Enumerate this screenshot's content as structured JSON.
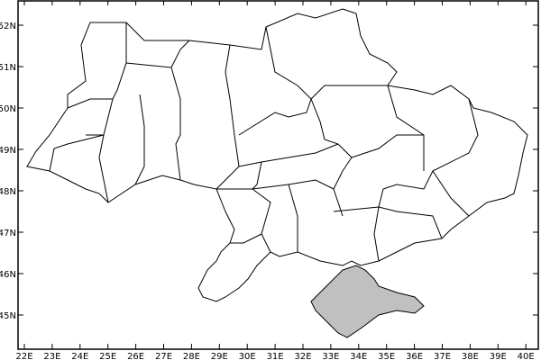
{
  "map": {
    "region": "Ukraine oblasts",
    "highlighted_region": "Crimea",
    "highlight_color": "#c0c0c0",
    "border_color": "#000000",
    "x_ticks": [
      "22E",
      "23E",
      "24E",
      "25E",
      "26E",
      "27E",
      "28E",
      "29E",
      "30E",
      "31E",
      "32E",
      "33E",
      "34E",
      "35E",
      "36E",
      "37E",
      "38E",
      "39E",
      "40E"
    ],
    "y_ticks": [
      "45N",
      "46N",
      "47N",
      "48N",
      "49N",
      "50N",
      "51N",
      "52N"
    ]
  }
}
